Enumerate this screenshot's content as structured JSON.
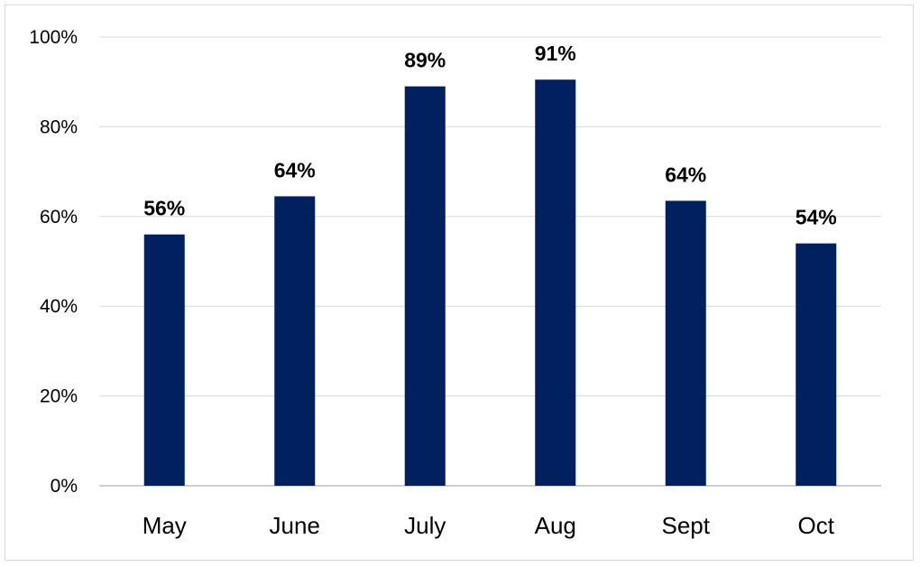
{
  "chart_data": {
    "type": "bar",
    "categories": [
      "May",
      "June",
      "July",
      "Aug",
      "Sept",
      "Oct"
    ],
    "values": [
      0.56,
      0.645,
      0.89,
      0.905,
      0.635,
      0.54
    ],
    "data_labels": [
      "56%",
      "64%",
      "89%",
      "91%",
      "64%",
      "54%"
    ],
    "ylim": [
      0,
      1
    ],
    "yticks": [
      0,
      0.2,
      0.4,
      0.6,
      0.8,
      1.0
    ],
    "ytick_labels": [
      "0%",
      "20%",
      "40%",
      "60%",
      "80%",
      "100%"
    ],
    "title": "",
    "xlabel": "",
    "ylabel": "",
    "grid": true,
    "legend": "none",
    "colors": {
      "bar": "#002060",
      "grid": "#d9d9d9",
      "axis": "#bfbfbf"
    }
  }
}
